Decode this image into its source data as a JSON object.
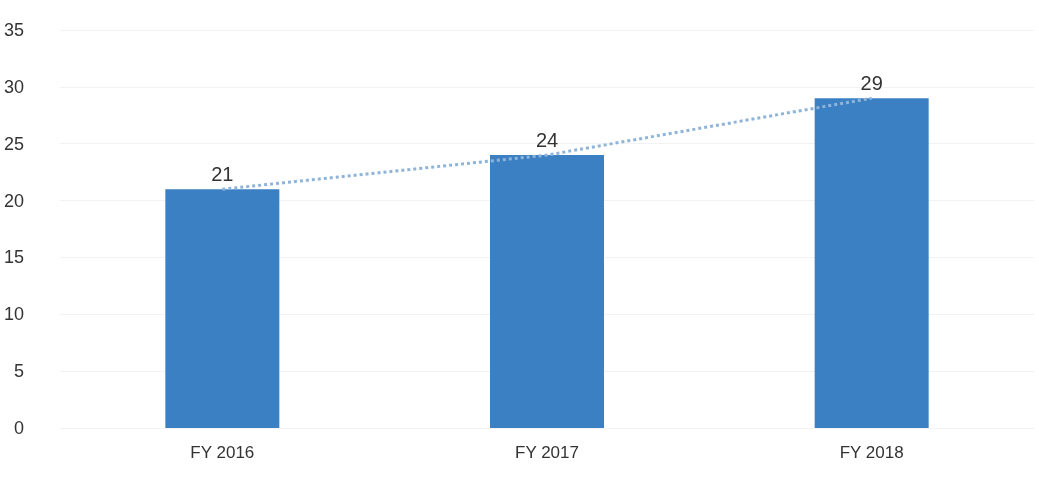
{
  "chart_data": {
    "type": "bar",
    "categories": [
      "FY 2016",
      "FY 2017",
      "FY 2018"
    ],
    "series": [
      {
        "color": "#3b80c3",
        "values": [
          21,
          24,
          29
        ],
        "value_labels": [
          "21",
          "24",
          "29"
        ]
      },
      {
        "type": "line",
        "color": "#8fb4d9",
        "values": [
          21,
          24,
          29
        ],
        "line_style": "dotted",
        "marker": "none"
      }
    ],
    "ylim": [
      0,
      35
    ],
    "yticks": [
      0,
      5,
      10,
      15,
      20,
      25,
      30,
      35
    ],
    "grid": "y"
  }
}
